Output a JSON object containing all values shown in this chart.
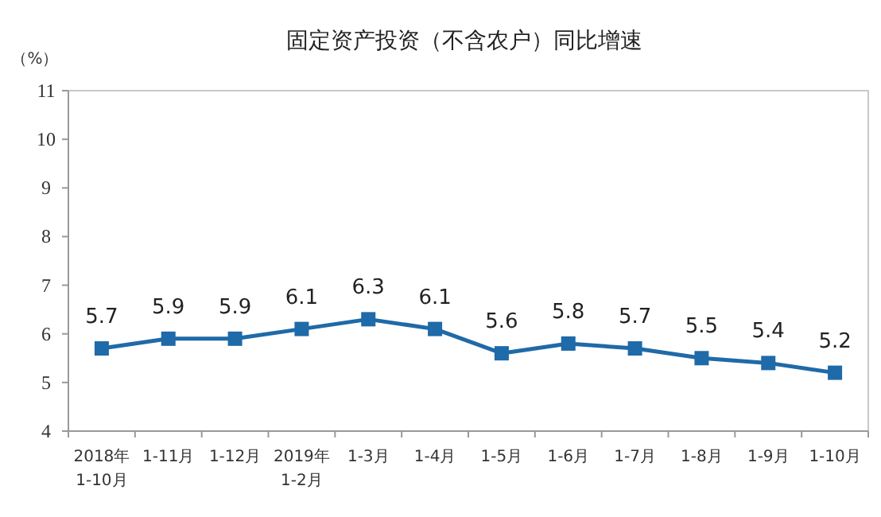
{
  "chart_data": {
    "type": "line",
    "title": "固定资产投资（不含农户）同比增速",
    "ylabel": "（%）",
    "categories": [
      "2018年\n1-10月",
      "1-11月",
      "1-12月",
      "2019年\n1-2月",
      "1-3月",
      "1-4月",
      "1-5月",
      "1-6月",
      "1-7月",
      "1-8月",
      "1-9月",
      "1-10月"
    ],
    "values": [
      5.7,
      5.9,
      5.9,
      6.1,
      6.3,
      6.1,
      5.6,
      5.8,
      5.7,
      5.5,
      5.4,
      5.2
    ],
    "color": "#1f6aa8",
    "ylim": [
      4,
      11
    ],
    "yticks": [
      4,
      5,
      6,
      7,
      8,
      9,
      10,
      11
    ],
    "data_labels": true,
    "marker": "square",
    "line_style": "solid"
  }
}
